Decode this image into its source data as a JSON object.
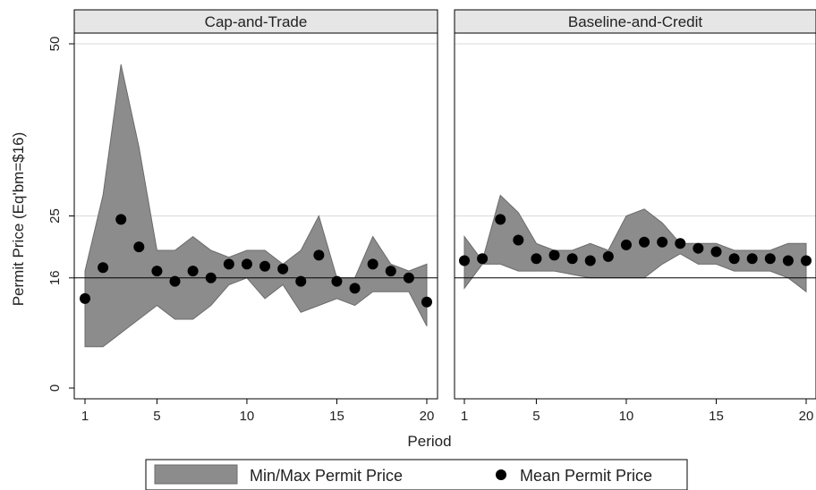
{
  "chart_data": {
    "type": "area",
    "y_axis_label": "Permit Price (Eq'bm=$16)",
    "x_axis_label": "Period",
    "y_ticks": [
      0,
      16,
      25,
      50
    ],
    "x_ticks": [
      1,
      5,
      10,
      15,
      20
    ],
    "y_range": [
      0,
      51
    ],
    "x_range": [
      1,
      20
    ],
    "equilibrium_price": 16,
    "gridlines": [
      25,
      50
    ],
    "panels": [
      {
        "title": "Cap-and-Trade",
        "periods": [
          1,
          2,
          3,
          4,
          5,
          6,
          7,
          8,
          9,
          10,
          11,
          12,
          13,
          14,
          15,
          16,
          17,
          18,
          19,
          20
        ],
        "min": [
          6,
          6,
          8,
          10,
          12,
          10,
          10,
          12,
          15,
          16,
          13,
          15,
          11,
          12,
          13,
          12,
          14,
          14,
          14,
          9
        ],
        "max": [
          17,
          28,
          47,
          35,
          20,
          20,
          22,
          20,
          19,
          20,
          20,
          18,
          20,
          25,
          16,
          16,
          22,
          18,
          17,
          18
        ],
        "mean": [
          13,
          17.5,
          24.5,
          20.5,
          17,
          15.5,
          17,
          16,
          18,
          18,
          17.7,
          17.3,
          15.5,
          19.3,
          15.5,
          14.5,
          18,
          17,
          16,
          12.5
        ]
      },
      {
        "title": "Baseline-and-Credit",
        "periods": [
          1,
          2,
          3,
          4,
          5,
          6,
          7,
          8,
          9,
          10,
          11,
          12,
          13,
          14,
          15,
          16,
          17,
          18,
          19,
          20
        ],
        "min": [
          14.5,
          18,
          18,
          17,
          17,
          17,
          16.5,
          16,
          16,
          16,
          16,
          18,
          19.5,
          18,
          18,
          17,
          17,
          17,
          16,
          14
        ],
        "max": [
          22,
          18.5,
          28,
          25.5,
          21,
          20,
          20,
          21,
          20,
          25,
          26,
          24,
          21,
          21,
          21,
          20,
          20,
          20,
          21,
          21
        ],
        "mean": [
          18.5,
          18.8,
          24.5,
          21.5,
          18.8,
          19.3,
          18.8,
          18.5,
          19.1,
          20.8,
          21.2,
          21.2,
          21,
          20.3,
          19.8,
          18.8,
          18.8,
          18.8,
          18.5,
          18.5
        ]
      }
    ],
    "legend": {
      "position": "bottom",
      "items": [
        {
          "label": "Min/Max Permit Price",
          "marker": "band"
        },
        {
          "label": "Mean Permit Price",
          "marker": "dot"
        }
      ]
    },
    "colors": {
      "band": "#8c8c8c",
      "band_stroke": "#6b6b6b",
      "dot": "#000000",
      "strip": "#e6e6e6",
      "gridline": "#d9d9d9",
      "equilibrium_line": "#000000"
    }
  }
}
